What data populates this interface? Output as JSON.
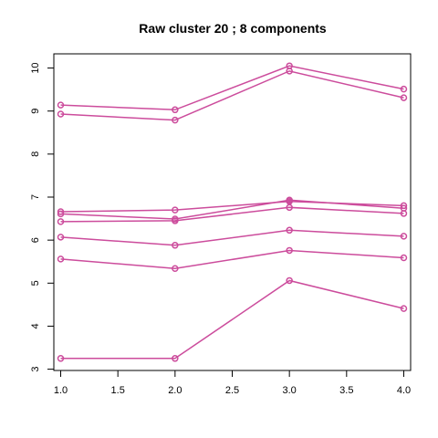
{
  "chart_data": {
    "type": "line",
    "title": "Raw cluster 20 ; 8 components",
    "xlabel": "",
    "ylabel": "",
    "x": [
      1,
      2,
      3,
      4
    ],
    "xlim": [
      0.94,
      4.06
    ],
    "ylim": [
      2.97,
      10.33
    ],
    "xticks": [
      1.0,
      1.5,
      2.0,
      2.5,
      3.0,
      3.5,
      4.0
    ],
    "xtick_labels": [
      "1.0",
      "1.5",
      "2.0",
      "2.5",
      "3.0",
      "3.5",
      "4.0"
    ],
    "yticks": [
      3,
      4,
      5,
      6,
      7,
      8,
      9,
      10
    ],
    "ytick_labels": [
      "3",
      "4",
      "5",
      "6",
      "7",
      "8",
      "9",
      "10"
    ],
    "grid": false,
    "legend": "none",
    "marker": "open-circle",
    "line_color": "#cc4c9c",
    "series": [
      {
        "values": [
          9.14,
          9.03,
          10.05,
          9.51
        ]
      },
      {
        "values": [
          8.93,
          8.79,
          9.93,
          9.31
        ]
      },
      {
        "values": [
          6.66,
          6.7,
          6.9,
          6.8
        ]
      },
      {
        "values": [
          6.61,
          6.49,
          6.93,
          6.74
        ]
      },
      {
        "values": [
          6.43,
          6.45,
          6.76,
          6.62
        ]
      },
      {
        "values": [
          6.07,
          5.88,
          6.23,
          6.09
        ]
      },
      {
        "values": [
          5.56,
          5.34,
          5.76,
          5.59
        ]
      },
      {
        "values": [
          3.25,
          3.25,
          5.06,
          4.41
        ]
      }
    ]
  }
}
